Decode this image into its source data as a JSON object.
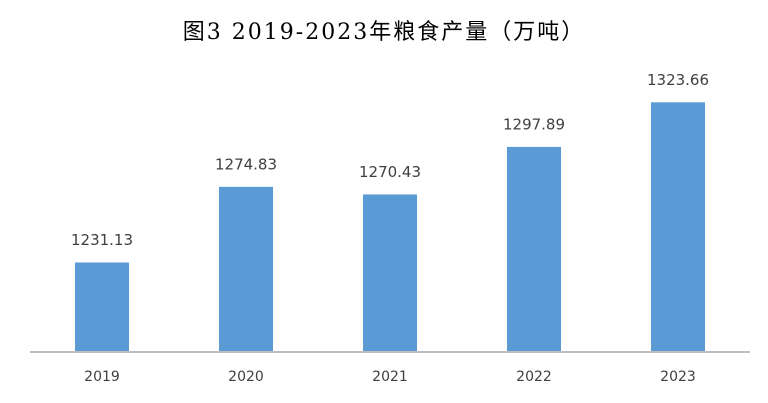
{
  "chart_data": {
    "type": "bar",
    "title": "图3 2019-2023年粮食产量（万吨）",
    "categories": [
      "2019",
      "2020",
      "2021",
      "2022",
      "2023"
    ],
    "values": [
      1231.13,
      1274.83,
      1270.43,
      1297.89,
      1323.66
    ],
    "color": "#5b9bd5",
    "ylim": [
      1180,
      1340
    ]
  }
}
